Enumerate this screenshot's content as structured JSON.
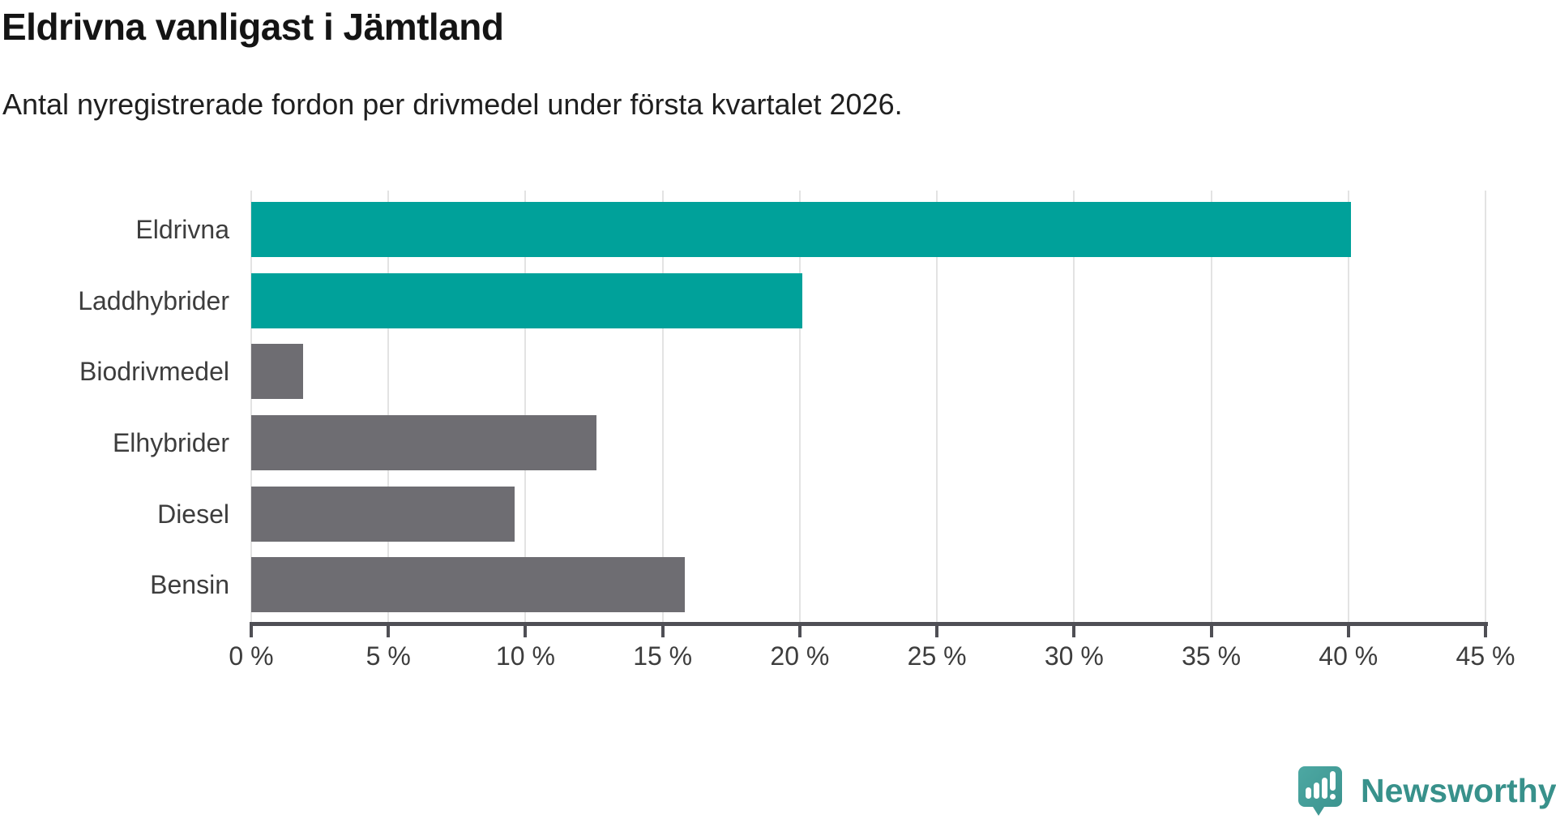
{
  "title": "Eldrivna vanligast i Jämtland",
  "subtitle": "Antal nyregistrerade fordon per drivmedel under första kvartalet 2026.",
  "chart_data": {
    "type": "bar",
    "orientation": "horizontal",
    "categories": [
      "Eldrivna",
      "Laddhybrider",
      "Biodrivmedel",
      "Elhybrider",
      "Diesel",
      "Bensin"
    ],
    "values": [
      40.1,
      20.1,
      1.9,
      12.6,
      9.6,
      15.8
    ],
    "bar_colors": [
      "#00a19a",
      "#00a19a",
      "#6e6d72",
      "#6e6d72",
      "#6e6d72",
      "#6e6d72"
    ],
    "highlight_color": "#00a19a",
    "default_color": "#6e6d72",
    "xlim": [
      0,
      45
    ],
    "x_tick_step": 5,
    "x_tick_labels": [
      "0 %",
      "5 %",
      "10 %",
      "15 %",
      "20 %",
      "25 %",
      "30 %",
      "35 %",
      "40 %",
      "45 %"
    ],
    "grid": "vertical-only",
    "gridline_color": "#e3e3e3",
    "axis_color": "#4f4f55",
    "legend": "none",
    "xlabel": "",
    "ylabel": ""
  },
  "branding": {
    "logo_text": "Newsworthy",
    "logo_icon": "newsworthy-speech-bubble-chart-icon",
    "logo_color": "#38918b",
    "logo_icon_color": "#449e99"
  }
}
